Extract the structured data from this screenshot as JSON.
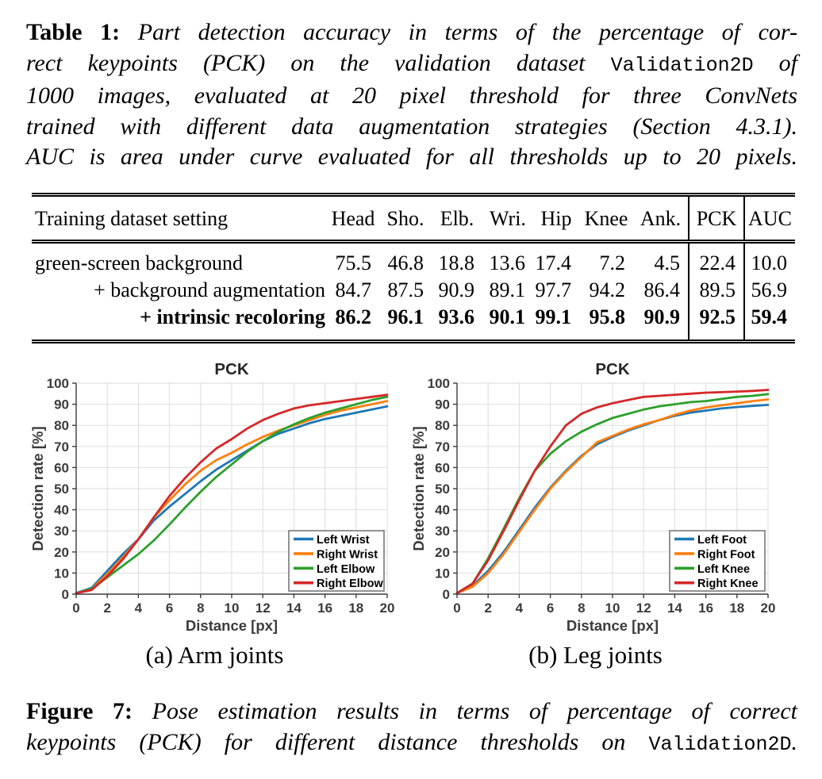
{
  "colors": {
    "blue": "#1f77b4",
    "orange": "#ff7f0e",
    "green": "#2ca02c",
    "red": "#d62728",
    "grid": "#dddddd",
    "axis": "#3b3b3b",
    "title": "#262626",
    "legend_border": "#777777",
    "rule": "#000000"
  },
  "table_caption": {
    "lines": [
      [
        {
          "t": "Table 1:",
          "s": "b"
        },
        {
          "t": " Part detection accuracy in terms of the percentage of cor-",
          "s": "i"
        }
      ],
      [
        {
          "t": "rect keypoints (PCK) on the validation dataset ",
          "s": "i"
        },
        {
          "t": "Validation2D",
          "s": "m"
        },
        {
          "t": " of",
          "s": "i"
        }
      ],
      [
        {
          "t": "1000 images, evaluated at 20 pixel threshold for three ConvNets",
          "s": "i"
        }
      ],
      [
        {
          "t": "trained with different data augmentation strategies (Section 4.3.1).",
          "s": "i"
        }
      ],
      [
        {
          "t": "AUC is area under curve evaluated for all thresholds up to 20 pixels.",
          "s": "i"
        }
      ]
    ]
  },
  "figure_caption": {
    "lines": [
      [
        {
          "t": "Figure 7:",
          "s": "b"
        },
        {
          "t": " Pose estimation results in terms of percentage of correct",
          "s": "i"
        }
      ],
      [
        {
          "t": "keypoints (PCK) for different distance thresholds on ",
          "s": "i"
        },
        {
          "t": "Validation2D",
          "s": "m"
        },
        {
          "t": ".",
          "s": "i"
        }
      ]
    ]
  },
  "table": {
    "columns": [
      "Training dataset setting",
      "Head",
      "Sho.",
      "Elb.",
      "Wri.",
      "Hip",
      "Knee",
      "Ank.",
      "PCK",
      "AUC"
    ],
    "rows": [
      {
        "setting": "green-screen background",
        "align": "left",
        "bold": false,
        "values": [
          "75.5",
          "46.8",
          "18.8",
          "13.6",
          "17.4",
          "7.2",
          "4.5",
          "22.4",
          "10.0"
        ]
      },
      {
        "setting": "+ background augmentation",
        "align": "right",
        "bold": false,
        "values": [
          "84.7",
          "87.5",
          "90.9",
          "89.1",
          "97.7",
          "94.2",
          "86.4",
          "89.5",
          "56.9"
        ]
      },
      {
        "setting": "+ intrinsic recoloring",
        "align": "right",
        "bold": true,
        "values": [
          "86.2",
          "96.1",
          "93.6",
          "90.1",
          "99.1",
          "95.8",
          "90.9",
          "92.5",
          "59.4"
        ]
      }
    ]
  },
  "chart_data": [
    {
      "type": "line",
      "title": "PCK",
      "subcaption": "(a) Arm joints",
      "xlabel": "Distance [px]",
      "ylabel": "Detection rate [%]",
      "xlim": [
        0,
        20
      ],
      "ylim": [
        0,
        100
      ],
      "xticks": [
        0,
        2,
        4,
        6,
        8,
        10,
        12,
        14,
        16,
        18,
        20
      ],
      "yticks": [
        0,
        10,
        20,
        30,
        40,
        50,
        60,
        70,
        80,
        90,
        100
      ],
      "grid": true,
      "legend_position": "lower right",
      "x": [
        0,
        1,
        2,
        3,
        4,
        5,
        6,
        7,
        8,
        9,
        10,
        11,
        12,
        13,
        14,
        15,
        16,
        17,
        18,
        19,
        20
      ],
      "series": [
        {
          "name": "Left Wrist",
          "color": "#1f77b4",
          "values": [
            0.5,
            3,
            11,
            19,
            26,
            35,
            41.5,
            47.5,
            53.5,
            59,
            63.5,
            68,
            72.5,
            76,
            78.5,
            81,
            83,
            84.5,
            86,
            87.5,
            89
          ]
        },
        {
          "name": "Right Wrist",
          "color": "#ff7f0e",
          "values": [
            0.5,
            2.5,
            9.5,
            17.5,
            26,
            36.5,
            44.5,
            52,
            58.5,
            63.5,
            67,
            71,
            74.5,
            77.5,
            80,
            82.5,
            85,
            87,
            88.5,
            90,
            91.5
          ]
        },
        {
          "name": "Left Elbow",
          "color": "#2ca02c",
          "values": [
            0.5,
            2.5,
            8,
            13.5,
            19,
            25.5,
            33,
            41,
            48.5,
            55.5,
            61.5,
            67.5,
            72.5,
            77,
            80.5,
            83.5,
            86,
            88,
            90,
            92,
            93.5
          ]
        },
        {
          "name": "Right Elbow",
          "color": "#d62728",
          "values": [
            0.5,
            2,
            8.5,
            16.5,
            26,
            36.5,
            46.5,
            55,
            62.5,
            69,
            73.5,
            78.5,
            82.5,
            85.5,
            88,
            89.5,
            90.5,
            91.5,
            92.5,
            93.5,
            94.5
          ]
        }
      ]
    },
    {
      "type": "line",
      "title": "PCK",
      "subcaption": "(b) Leg joints",
      "xlabel": "Distance [px]",
      "ylabel": "Detection rate [%]",
      "xlim": [
        0,
        20
      ],
      "ylim": [
        0,
        100
      ],
      "xticks": [
        0,
        2,
        4,
        6,
        8,
        10,
        12,
        14,
        16,
        18,
        20
      ],
      "yticks": [
        0,
        10,
        20,
        30,
        40,
        50,
        60,
        70,
        80,
        90,
        100
      ],
      "grid": true,
      "legend_position": "lower right",
      "x": [
        0,
        1,
        2,
        3,
        4,
        5,
        6,
        7,
        8,
        9,
        10,
        11,
        12,
        13,
        14,
        15,
        16,
        17,
        18,
        19,
        20
      ],
      "series": [
        {
          "name": "Left Foot",
          "color": "#1f77b4",
          "values": [
            0.5,
            4,
            11,
            20,
            30.5,
            41,
            50.5,
            58.5,
            65.5,
            71,
            74.5,
            77.5,
            80,
            82.5,
            84.5,
            86,
            87,
            88,
            88.7,
            89.2,
            89.7
          ]
        },
        {
          "name": "Right Foot",
          "color": "#ff7f0e",
          "values": [
            0.5,
            3.5,
            10,
            19,
            29.5,
            40,
            50,
            58,
            65,
            72,
            75,
            78,
            80.5,
            82.5,
            85,
            87,
            88.5,
            89.5,
            90.5,
            91.5,
            92.3
          ]
        },
        {
          "name": "Left Knee",
          "color": "#2ca02c",
          "values": [
            0.5,
            5,
            17,
            31,
            45.5,
            58.5,
            66.5,
            72.5,
            77,
            80.5,
            83.5,
            85.5,
            87.5,
            89,
            90,
            91,
            91.5,
            92.5,
            93.5,
            94,
            94.8
          ]
        },
        {
          "name": "Right Knee",
          "color": "#d62728",
          "values": [
            0.5,
            5,
            16,
            30,
            44.5,
            58.5,
            70,
            80,
            85.5,
            88.5,
            90.5,
            92,
            93.5,
            94,
            94.5,
            95,
            95.5,
            95.7,
            96,
            96.3,
            96.8
          ]
        }
      ]
    }
  ]
}
